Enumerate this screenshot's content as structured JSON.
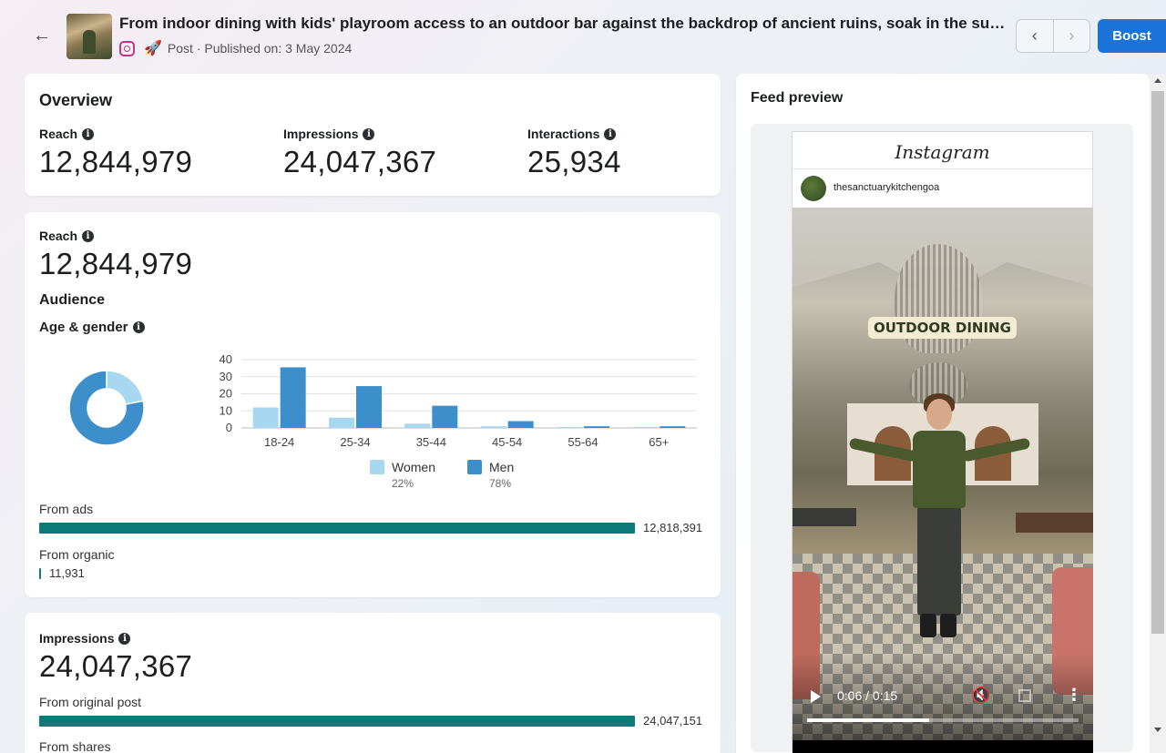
{
  "header": {
    "back_icon": "arrow-left-icon",
    "title": "From indoor dining with kids' playroom access to an outdoor bar against the backdrop of ancient ruins, soak in the sun or c...",
    "meta": "Post · Published on: 3 May 2024",
    "platform_icon": "instagram-icon",
    "boost_icon": "rocket-icon",
    "prev_icon": "chevron-left-icon",
    "next_icon": "chevron-right-icon",
    "boost_label": "Boost",
    "accent_color": "#1a73d9"
  },
  "overview": {
    "title": "Overview",
    "metrics": [
      {
        "label": "Reach",
        "value": "12,844,979"
      },
      {
        "label": "Impressions",
        "value": "24,047,367"
      },
      {
        "label": "Interactions",
        "value": "25,934"
      }
    ]
  },
  "reach_card": {
    "label": "Reach",
    "value": "12,844,979",
    "audience_title": "Audience",
    "age_gender_title": "Age & gender",
    "from_ads_label": "From ads",
    "from_ads_value": "12,818,391",
    "from_organic_label": "From organic",
    "from_organic_value": "11,931",
    "bar_color": "#0c7a76"
  },
  "impressions_card": {
    "label": "Impressions",
    "value": "24,047,367",
    "from_original_label": "From original post",
    "from_original_value": "24,047,151",
    "from_shares_label": "From shares"
  },
  "chart_data": [
    {
      "type": "pie",
      "labels": [
        "Women",
        "Men"
      ],
      "values": [
        22,
        78
      ],
      "colors": [
        "#a8d8f0",
        "#3d8fcc"
      ]
    },
    {
      "type": "bar",
      "categories": [
        "18-24",
        "25-34",
        "35-44",
        "45-54",
        "55-64",
        "65+"
      ],
      "series": [
        {
          "name": "Women",
          "values": [
            12,
            6,
            2.5,
            1,
            0.5,
            0.5
          ],
          "color": "#a8d8f0"
        },
        {
          "name": "Men",
          "values": [
            35.5,
            24.5,
            13,
            4,
            1,
            1
          ],
          "color": "#3d8fcc"
        }
      ],
      "yticks": [
        0,
        10,
        20,
        30,
        40
      ],
      "ylim": [
        0,
        40
      ],
      "grid": true,
      "legend": [
        {
          "name": "Women",
          "pct": "22%"
        },
        {
          "name": "Men",
          "pct": "78%"
        }
      ],
      "legend_position": "bottom"
    }
  ],
  "feed_preview": {
    "title": "Feed preview",
    "app_name": "Instagram",
    "username": "thesanctuarykitchengoa",
    "video_overlay_text": "OUTDOOR DINING",
    "time": "0:06 / 0:15",
    "progress": 0.45,
    "play_icon": "play-icon",
    "mute_icon": "muted-speaker-icon",
    "fullscreen_icon": "fullscreen-icon",
    "more_icon": "more-vertical-icon"
  }
}
